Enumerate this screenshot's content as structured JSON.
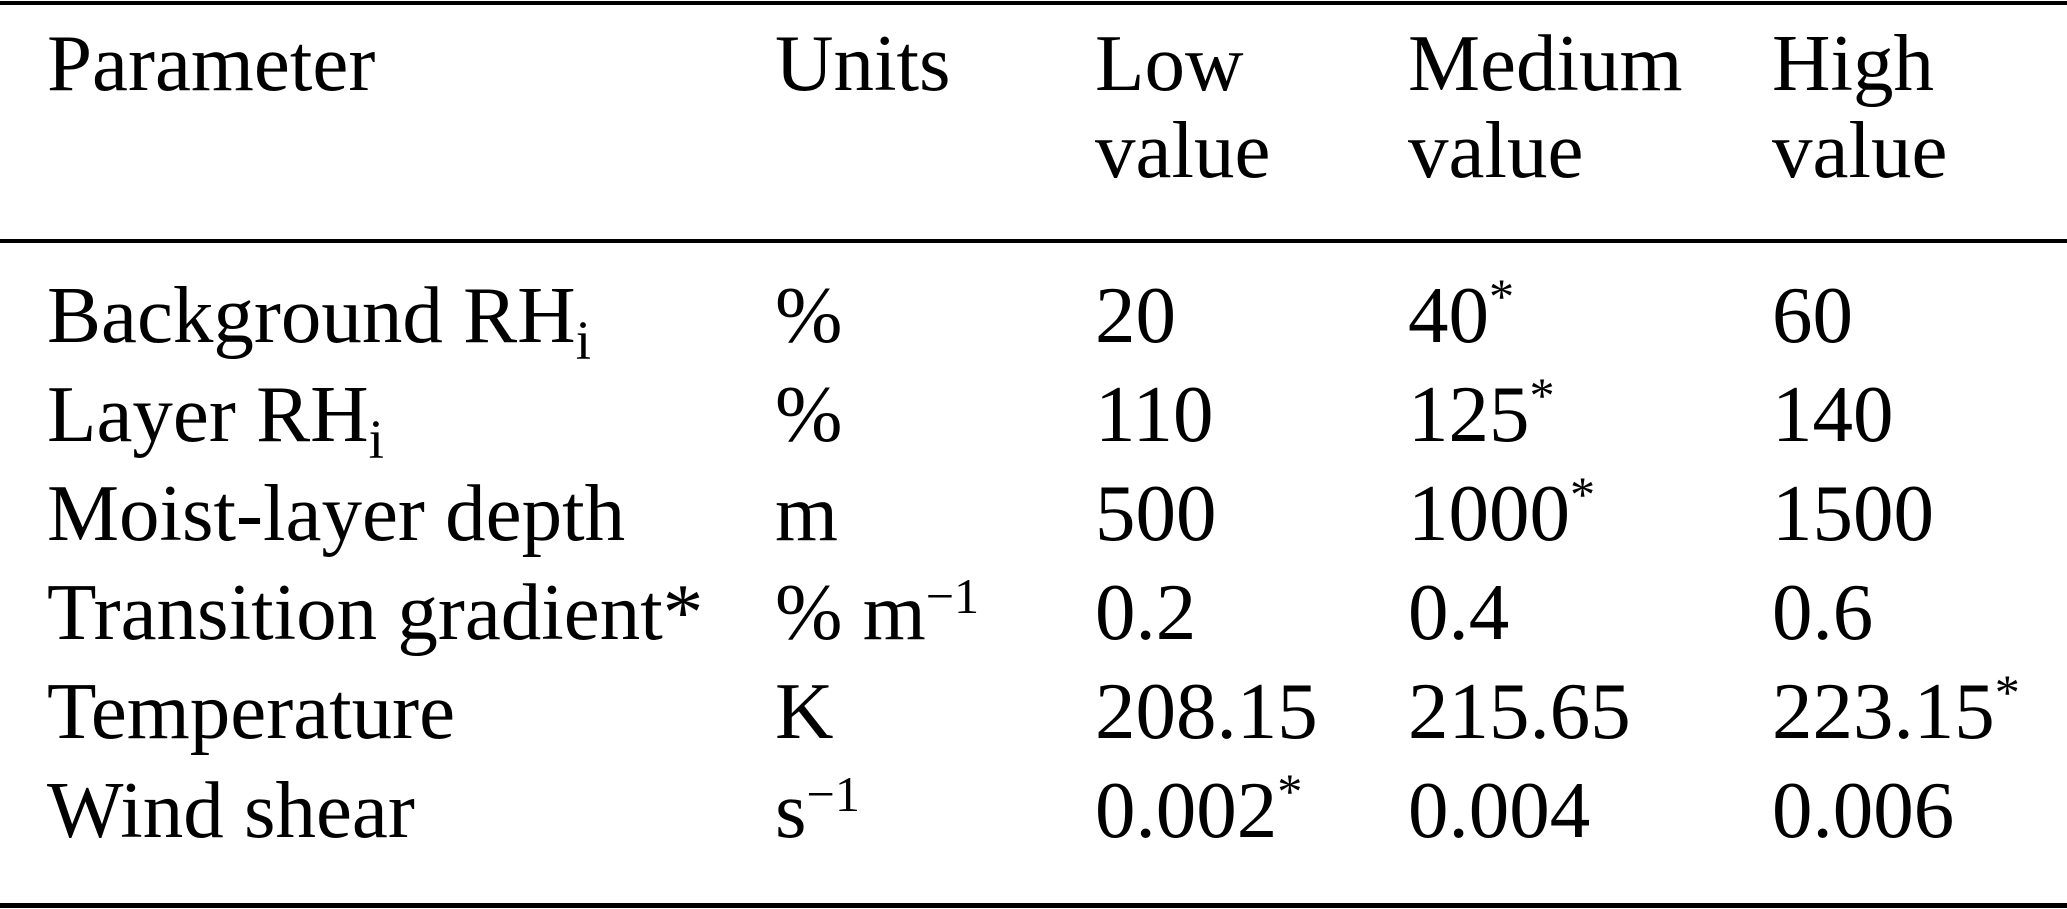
{
  "colors": {
    "background": "#ffffff",
    "text": "#000000",
    "rule": "#000000"
  },
  "table": {
    "headers": {
      "parameter": {
        "line1": "Parameter",
        "line2": ""
      },
      "units": {
        "line1": "Units",
        "line2": ""
      },
      "low": {
        "line1": "Low",
        "line2": "value"
      },
      "medium": {
        "line1": "Medium",
        "line2": "value"
      },
      "high": {
        "line1": "High",
        "line2": "value"
      }
    },
    "rows": [
      {
        "param": "Background RH",
        "param_sub": "i",
        "units": "%",
        "units_sup": "",
        "low": "20",
        "low_sup": "",
        "medium": "40",
        "medium_sup": "*",
        "high": "60",
        "high_sup": ""
      },
      {
        "param": "Layer RH",
        "param_sub": "i",
        "units": "%",
        "units_sup": "",
        "low": "110",
        "low_sup": "",
        "medium": "125",
        "medium_sup": "*",
        "high": "140",
        "high_sup": ""
      },
      {
        "param": "Moist-layer depth",
        "param_sub": "",
        "units": "m",
        "units_sup": "",
        "low": "500",
        "low_sup": "",
        "medium": "1000",
        "medium_sup": "*",
        "high": "1500",
        "high_sup": ""
      },
      {
        "param": "Transition gradient*",
        "param_sub": "",
        "units": "% m",
        "units_sup": "−1",
        "low": "0.2",
        "low_sup": "",
        "medium": "0.4",
        "medium_sup": "",
        "high": "0.6",
        "high_sup": ""
      },
      {
        "param": "Temperature",
        "param_sub": "",
        "units": "K",
        "units_sup": "",
        "low": "208.15",
        "low_sup": "",
        "medium": "215.65",
        "medium_sup": "",
        "high": "223.15",
        "high_sup": "*"
      },
      {
        "param": "Wind shear",
        "param_sub": "",
        "units": "s",
        "units_sup": "−1",
        "low": "0.002",
        "low_sup": "*",
        "medium": "0.004",
        "medium_sup": "",
        "high": "0.006",
        "high_sup": ""
      }
    ]
  }
}
